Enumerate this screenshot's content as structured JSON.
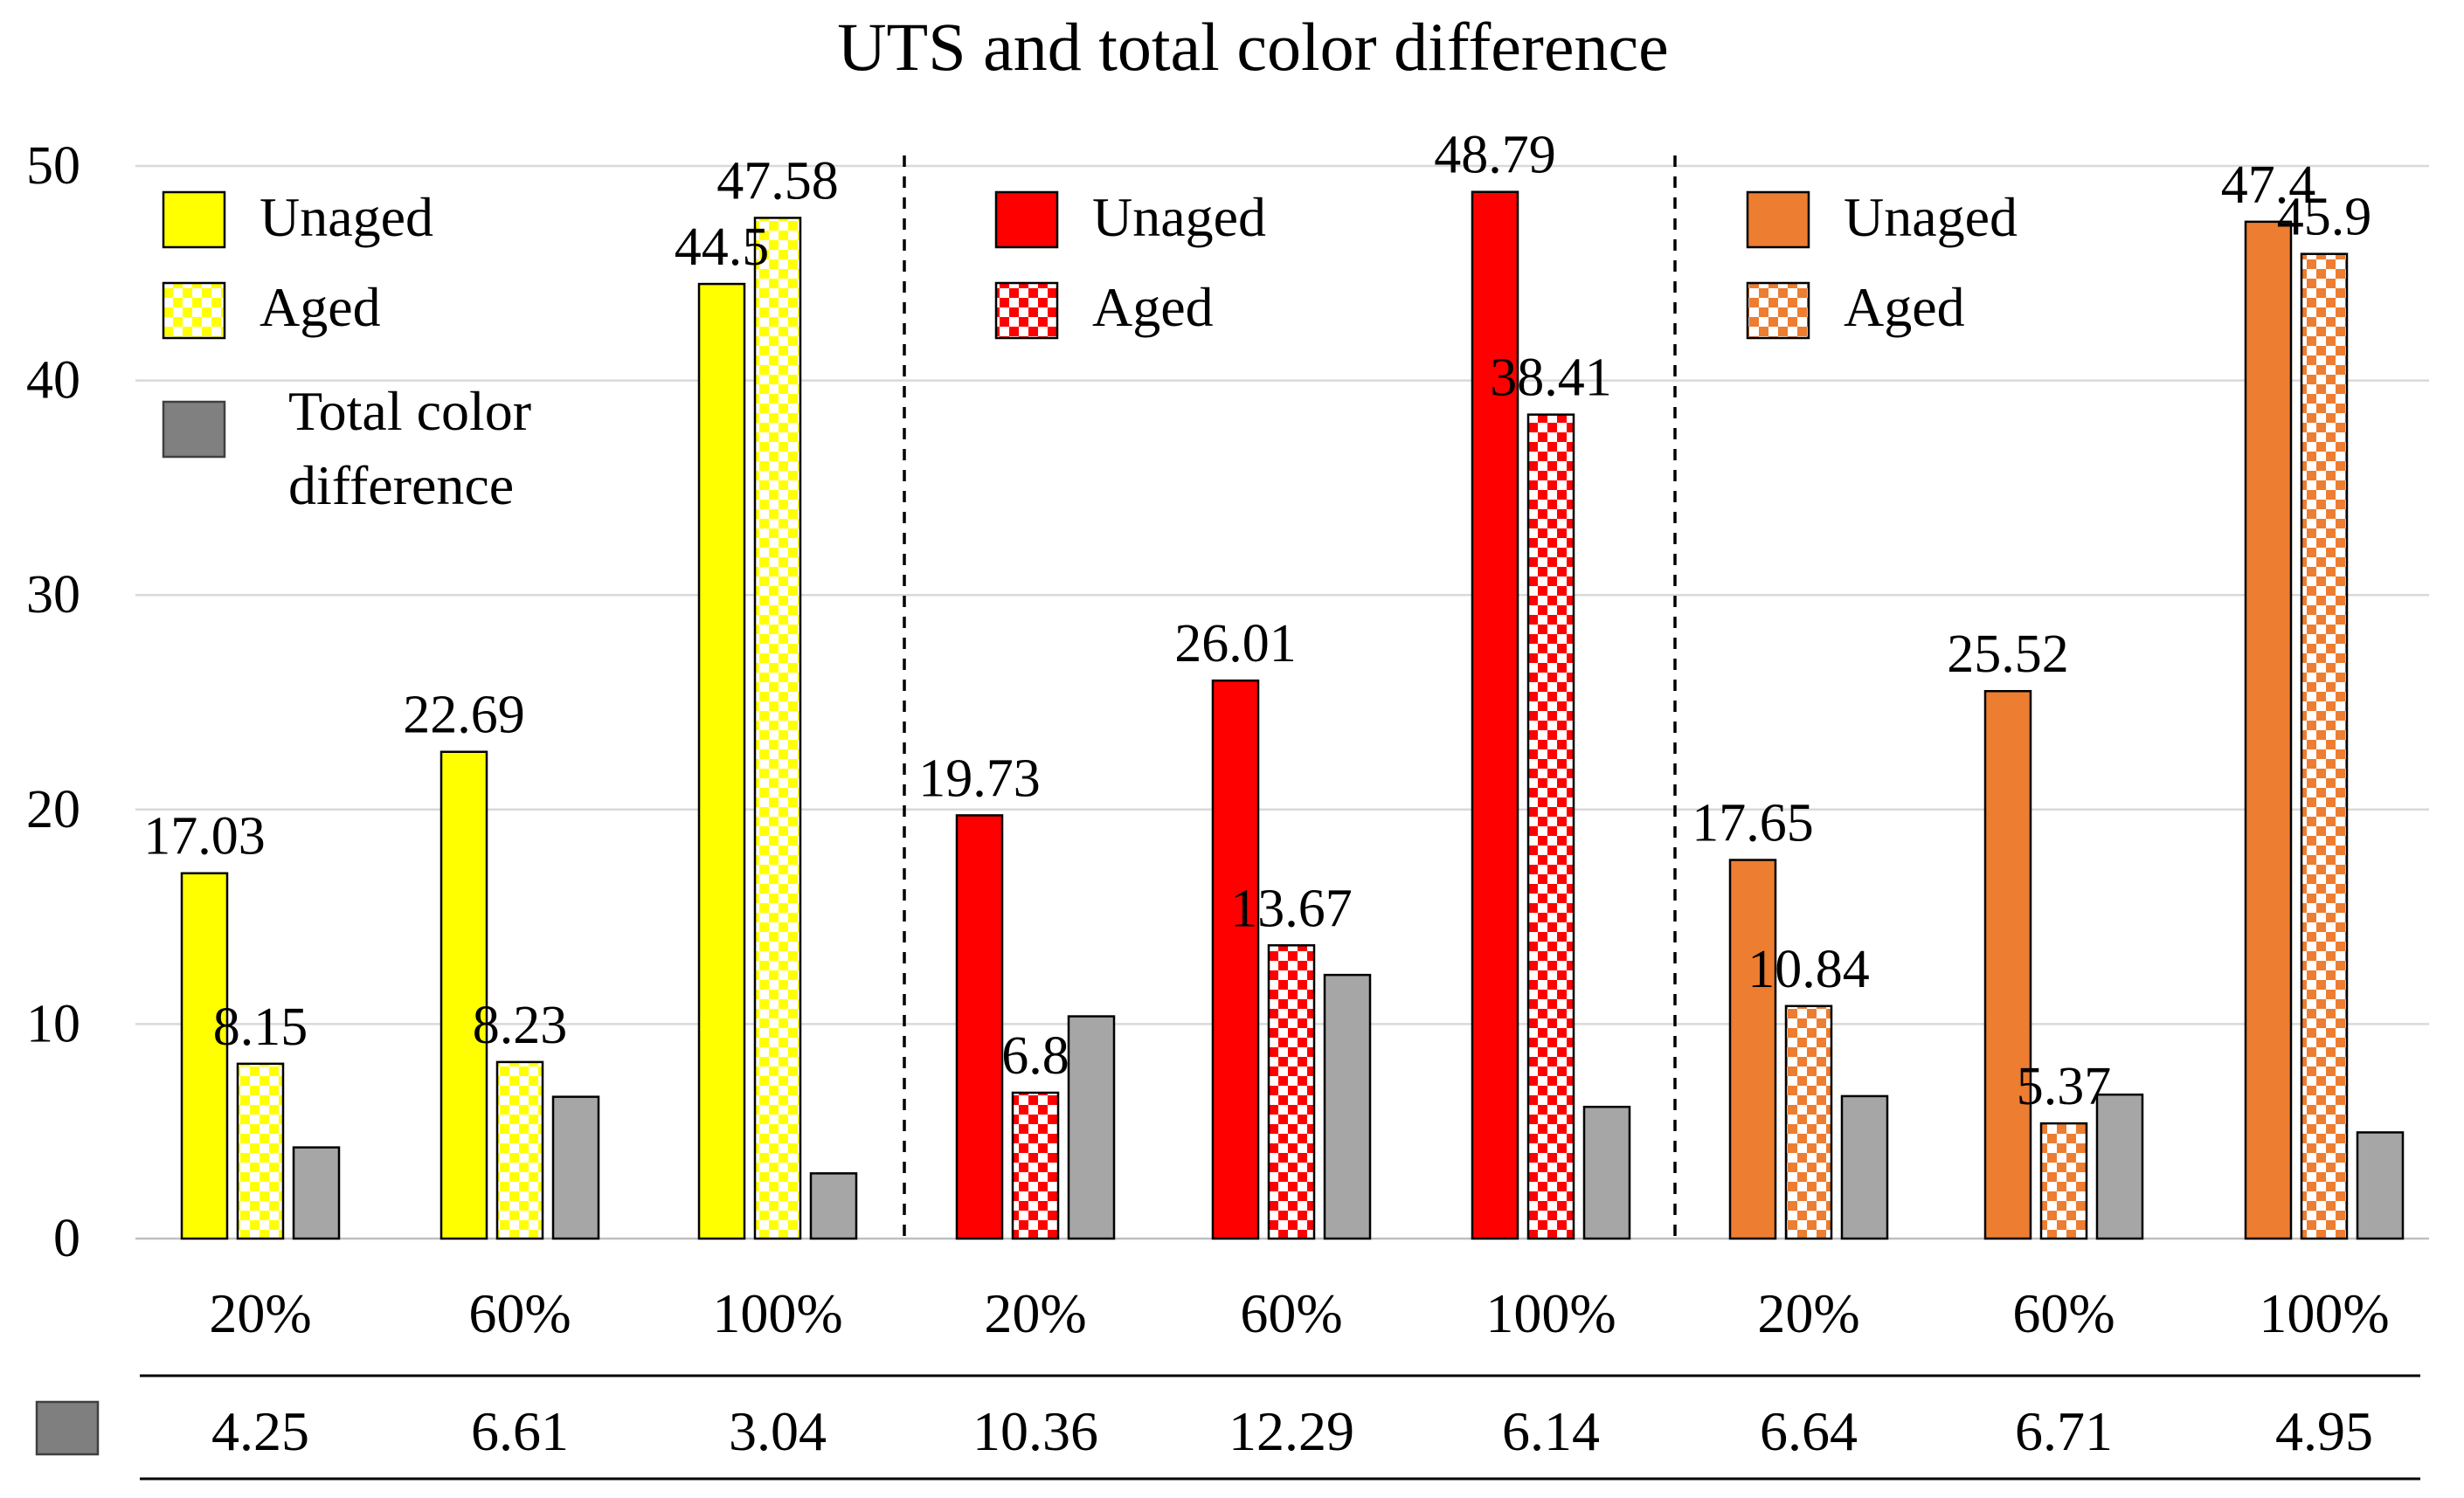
{
  "chart_data": {
    "type": "bar",
    "title": "UTS and total color difference",
    "ylim": [
      0,
      50
    ],
    "yticks": [
      0,
      10,
      20,
      30,
      40,
      50
    ],
    "grid": true,
    "categories": [
      "20%",
      "60%",
      "100%",
      "20%",
      "60%",
      "100%",
      "20%",
      "60%",
      "100%"
    ],
    "groups": [
      {
        "color": "#FFFF00",
        "series": [
          {
            "name": "Unaged",
            "values": [
              17.03,
              22.69,
              44.5
            ],
            "labels": [
              "17.03",
              "22.69",
              "44.5"
            ]
          },
          {
            "name": "Aged",
            "values": [
              8.15,
              8.23,
              47.58
            ],
            "labels": [
              "8.15",
              "8.23",
              "47.58"
            ],
            "pattern": "checkerboard"
          }
        ]
      },
      {
        "color": "#FF0000",
        "series": [
          {
            "name": "Unaged",
            "values": [
              19.73,
              26.01,
              48.79
            ],
            "labels": [
              "19.73",
              "26.01",
              "48.79"
            ]
          },
          {
            "name": "Aged",
            "values": [
              6.8,
              13.67,
              38.41
            ],
            "labels": [
              "6.8",
              "13.67",
              "38.41"
            ],
            "pattern": "checkerboard"
          }
        ]
      },
      {
        "color": "#ED7D31",
        "series": [
          {
            "name": "Unaged",
            "values": [
              17.65,
              25.52,
              47.4
            ],
            "labels": [
              "17.65",
              "25.52",
              "47.4"
            ]
          },
          {
            "name": "Aged",
            "values": [
              10.84,
              5.37,
              45.9
            ],
            "labels": [
              "10.84",
              "5.37",
              "45.9"
            ],
            "pattern": "checkerboard"
          }
        ]
      }
    ],
    "total_color_difference": {
      "name": "Total color difference",
      "legend_lines": [
        "Total color",
        "difference"
      ],
      "color": "#A6A6A6",
      "values": [
        4.25,
        6.61,
        3.04,
        10.36,
        12.29,
        6.14,
        6.64,
        6.71,
        4.95
      ],
      "labels": [
        "4.25",
        "6.61",
        "3.04",
        "10.36",
        "12.29",
        "6.14",
        "6.64",
        "6.71",
        "4.95"
      ]
    }
  }
}
